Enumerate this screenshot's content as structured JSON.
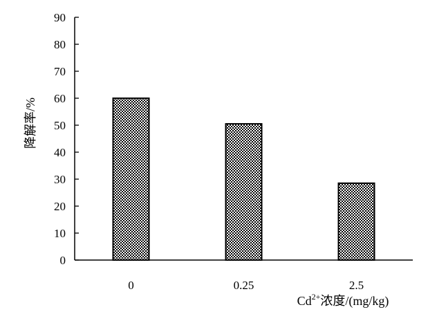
{
  "chart_data": {
    "type": "bar",
    "categories": [
      "0",
      "0.25",
      "2.5"
    ],
    "values": [
      60,
      50.5,
      28.5
    ],
    "ylim": [
      0,
      90
    ],
    "yticks": [
      0,
      10,
      20,
      30,
      40,
      50,
      60,
      70,
      80,
      90
    ],
    "ylabel": "降解率/%",
    "xlabel": {
      "prefix": "Cd",
      "superscript": "2+",
      "suffix": "浓度/(mg/kg)"
    },
    "grid": false,
    "bar_fill": "dotted-pattern",
    "colors": {
      "bar_stroke": "#000000",
      "bar_dots": "#000000",
      "background": "#ffffff"
    }
  }
}
